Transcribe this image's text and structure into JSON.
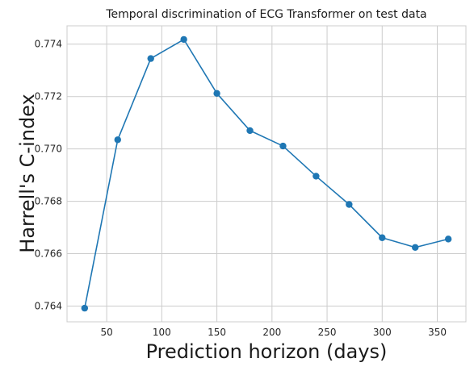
{
  "chart_data": {
    "type": "line",
    "title": "Temporal discrimination of ECG Transformer on test data",
    "xlabel": "Prediction horizon (days)",
    "ylabel": "Harrell's C-index",
    "xlim": [
      14,
      376
    ],
    "ylim": [
      0.7634,
      0.7747
    ],
    "x_ticks": [
      50,
      100,
      150,
      200,
      250,
      300,
      350
    ],
    "y_ticks": [
      0.764,
      0.766,
      0.768,
      0.77,
      0.772,
      0.774
    ],
    "y_tick_labels": [
      "0.764",
      "0.766",
      "0.768",
      "0.770",
      "0.772",
      "0.774"
    ],
    "grid": true,
    "series": [
      {
        "color": "#1f77b4",
        "marker": "circle",
        "x": [
          30,
          60,
          90,
          120,
          150,
          180,
          210,
          240,
          270,
          300,
          330,
          360
        ],
        "y": [
          0.76392,
          0.77035,
          0.77345,
          0.77418,
          0.77212,
          0.7707,
          0.77011,
          0.76896,
          0.76788,
          0.76661,
          0.76624,
          0.76656
        ]
      }
    ]
  }
}
